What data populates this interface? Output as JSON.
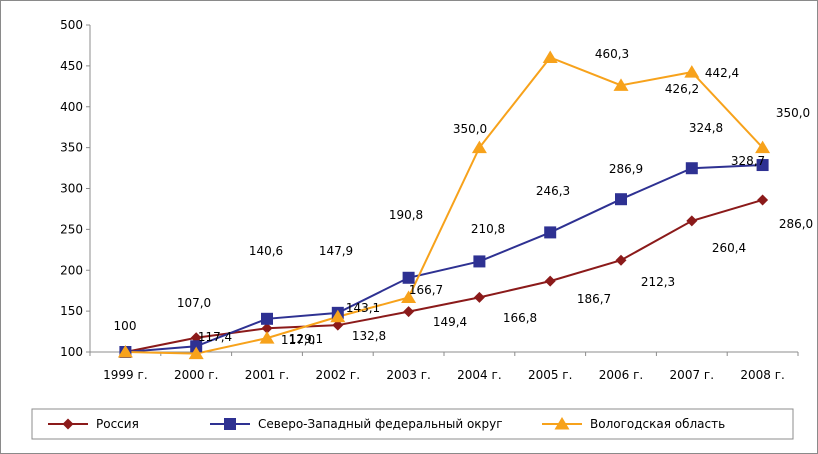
{
  "chart_data": {
    "type": "line",
    "title": "",
    "xlabel": "",
    "ylabel": "",
    "categories": [
      "1999 г.",
      "2000 г.",
      "2001 г.",
      "2002 г.",
      "2003 г.",
      "2004 г.",
      "2005 г.",
      "2006 г.",
      "2007 г.",
      "2008 г."
    ],
    "ylim": [
      100,
      500
    ],
    "yticks": [
      100,
      150,
      200,
      250,
      300,
      350,
      400,
      450,
      500
    ],
    "grid": false,
    "legend_position": "bottom",
    "series": [
      {
        "name": "Россия",
        "color": "#8b1a1a",
        "marker": "diamond",
        "values": [
          100,
          117.4,
          129.1,
          132.8,
          149.4,
          166.8,
          186.7,
          212.3,
          260.4,
          286.0
        ],
        "labels": [
          "",
          "117,4",
          "129,1",
          "132,8",
          "149,4",
          "166,8",
          "186,7",
          "212,3",
          "260,4",
          "286,0"
        ]
      },
      {
        "name": "Северо-Западный федеральный округ",
        "color": "#2e3192",
        "marker": "square",
        "values": [
          100,
          107.0,
          140.6,
          147.9,
          190.8,
          210.8,
          246.3,
          286.9,
          324.8,
          328.7
        ],
        "labels": [
          "100",
          "107,0",
          "140,6",
          "147,9",
          "190,8",
          "210,8",
          "246,3",
          "286,9",
          "324,8",
          "328,7"
        ]
      },
      {
        "name": "Вологодская  область",
        "color": "#f7a21b",
        "marker": "triangle",
        "values": [
          100,
          98,
          117.0,
          143.1,
          166.7,
          350.0,
          460.3,
          426.2,
          442.4,
          350.0
        ],
        "labels": [
          "",
          "",
          "117,0",
          "143,1",
          "166,7",
          "350,0",
          "460,3",
          "426,2",
          "442,4",
          "350,0"
        ]
      }
    ]
  }
}
